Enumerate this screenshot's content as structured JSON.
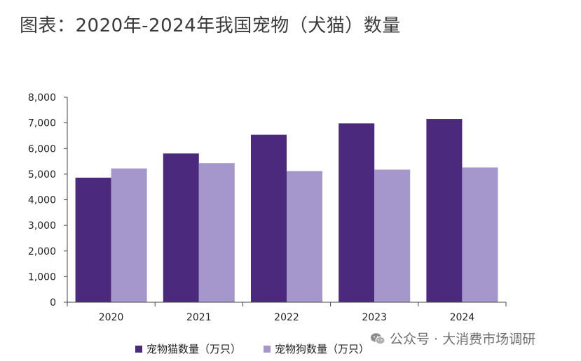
{
  "title": "图表：2020年-2024年我国宠物（犬猫）数量",
  "chart_data": {
    "type": "bar",
    "title": "图表：2020年-2024年我国宠物（犬猫）数量",
    "categories": [
      "2020",
      "2021",
      "2022",
      "2023",
      "2024"
    ],
    "series": [
      {
        "name": "宠物猫数量（万只）",
        "color": "#4b2a7e",
        "values": [
          4862,
          5806,
          6536,
          6980,
          7153
        ]
      },
      {
        "name": "宠物狗数量（万只）",
        "color": "#a597cc",
        "values": [
          5222,
          5429,
          5119,
          5175,
          5258
        ]
      }
    ],
    "ylim": [
      0,
      8000
    ],
    "yticks": [
      0,
      1000,
      2000,
      3000,
      4000,
      5000,
      6000,
      7000,
      8000
    ],
    "ytick_labels": [
      "0",
      "1,000",
      "2,000",
      "3,000",
      "4,000",
      "5,000",
      "6,000",
      "7,000",
      "8,000"
    ],
    "xlabel": "",
    "ylabel": "",
    "grid": false,
    "legend_position": "bottom"
  },
  "watermark": {
    "icon": "wechat-icon",
    "text": "公众号 · 大消费市场调研"
  }
}
